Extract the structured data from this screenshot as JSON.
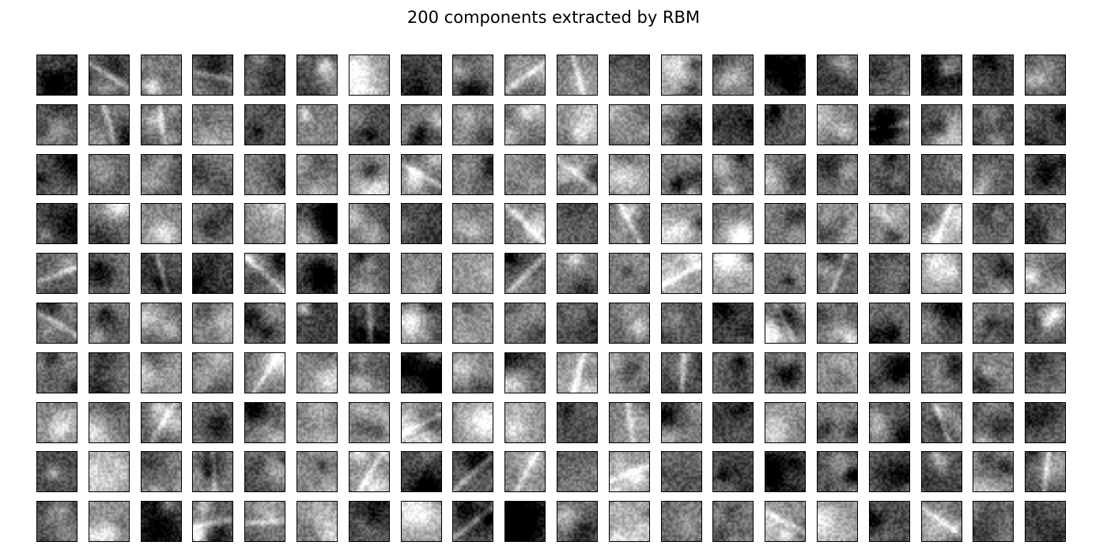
{
  "figure": {
    "title": "200 components extracted by RBM"
  },
  "grid": {
    "rows": 10,
    "columns": 20,
    "count": 200,
    "colormap": "gray",
    "tick_labels": "none",
    "border_color": "#000000"
  }
}
